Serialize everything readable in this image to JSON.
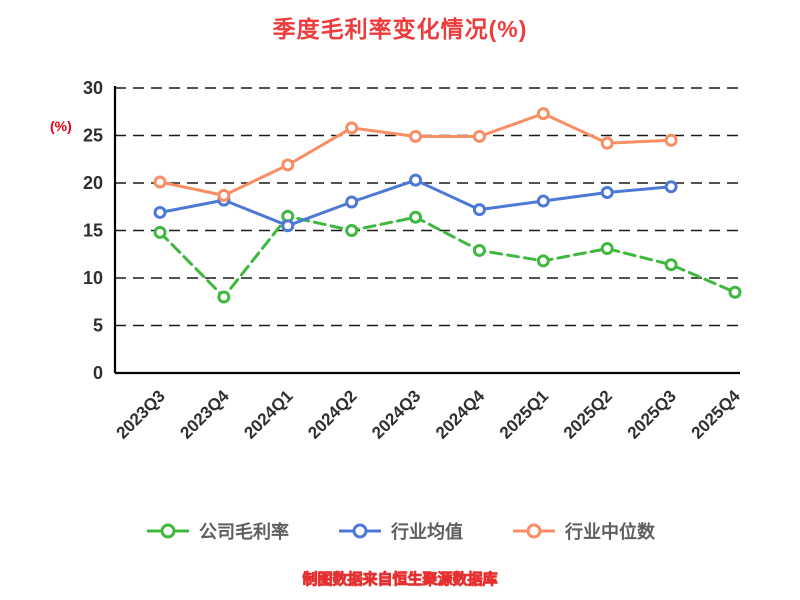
{
  "title": "季度毛利率变化情况(%)",
  "ylabel": "(%)",
  "footer": "制图数据来自恒生聚源数据库",
  "colors": {
    "title": "#ee3b3b",
    "ylabel": "#e60012",
    "axis": "#000000",
    "grid": "#1a1a1a",
    "tick_text": "#2f2f2f",
    "legend_text": "#5e5e5e",
    "footer_fill": "#ffa200",
    "footer_stroke": "#e63030"
  },
  "chart_data": {
    "type": "line",
    "title": "季度毛利率变化情况(%)",
    "xlabel": "",
    "ylabel": "(%)",
    "ylim": [
      0,
      30
    ],
    "yticks": [
      0,
      5,
      10,
      15,
      20,
      25,
      30
    ],
    "grid": "dashed-horizontal",
    "legend_position": "bottom",
    "categories": [
      "2023Q3",
      "2023Q4",
      "2024Q1",
      "2024Q2",
      "2024Q3",
      "2024Q4",
      "2025Q1",
      "2025Q2",
      "2025Q3",
      "2025Q4"
    ],
    "series": [
      {
        "name": "公司毛利率",
        "color": "#3fb83f",
        "style": "dashed",
        "values": [
          14.8,
          8.0,
          16.5,
          15.0,
          16.4,
          12.9,
          11.8,
          13.1,
          11.4,
          8.5
        ]
      },
      {
        "name": "行业均值",
        "color": "#4d79d6",
        "style": "solid",
        "values": [
          16.9,
          18.2,
          15.5,
          18.0,
          20.3,
          17.2,
          18.1,
          19.0,
          19.6,
          null
        ]
      },
      {
        "name": "行业中位数",
        "color": "#f98e64",
        "style": "solid",
        "values": [
          20.1,
          18.7,
          21.9,
          25.8,
          24.9,
          24.9,
          27.3,
          24.2,
          24.5,
          null
        ]
      }
    ]
  }
}
